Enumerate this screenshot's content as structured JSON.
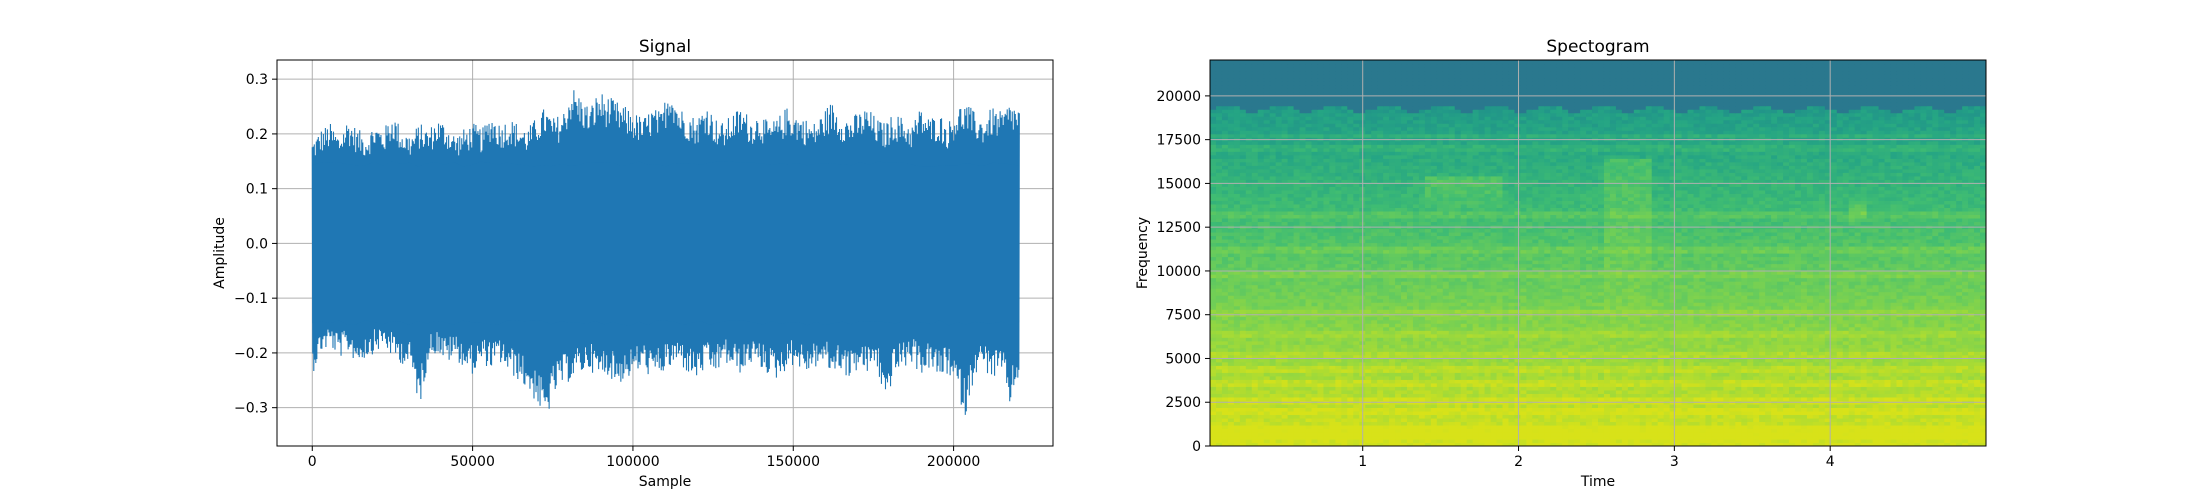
{
  "chart_data": [
    {
      "type": "line",
      "title": "Signal",
      "xlabel": "Sample",
      "ylabel": "Amplitude",
      "xlim": [
        -11000,
        231000
      ],
      "ylim": [
        -0.37,
        0.335
      ],
      "x_ticks": [
        0,
        50000,
        100000,
        150000,
        200000
      ],
      "x_tick_labels": [
        "0",
        "50000",
        "100000",
        "150000",
        "200000"
      ],
      "y_ticks": [
        -0.3,
        -0.2,
        -0.1,
        0.0,
        0.1,
        0.2,
        0.3
      ],
      "y_tick_labels": [
        "−0.3",
        "−0.2",
        "−0.1",
        "0.0",
        "0.1",
        "0.2",
        "0.3"
      ],
      "grid": true,
      "series": [
        {
          "color": "#1f77b4",
          "x_range": [
            0,
            220500
          ],
          "upper_envelope": [
            0.19,
            0.21,
            0.22,
            0.2,
            0.23,
            0.21,
            0.2,
            0.22,
            0.21,
            0.24,
            0.21,
            0.2,
            0.22,
            0.21,
            0.23,
            0.22,
            0.2,
            0.21,
            0.22,
            0.21,
            0.24,
            0.22,
            0.23,
            0.22,
            0.21,
            0.23,
            0.25,
            0.23,
            0.24,
            0.29,
            0.27,
            0.25,
            0.28,
            0.27,
            0.26,
            0.25,
            0.24,
            0.23,
            0.25,
            0.24,
            0.3,
            0.25,
            0.24,
            0.23,
            0.26,
            0.23,
            0.22,
            0.24,
            0.25,
            0.23,
            0.24,
            0.22,
            0.23,
            0.25,
            0.24,
            0.23,
            0.22,
            0.24,
            0.26,
            0.24,
            0.23,
            0.24,
            0.25,
            0.23,
            0.22,
            0.24,
            0.23,
            0.22,
            0.25,
            0.23,
            0.24,
            0.22,
            0.25,
            0.26,
            0.24,
            0.23,
            0.25,
            0.24,
            0.26,
            0.25
          ],
          "lower_envelope": [
            -0.24,
            -0.2,
            -0.19,
            -0.21,
            -0.2,
            -0.22,
            -0.21,
            -0.2,
            -0.19,
            -0.21,
            -0.22,
            -0.23,
            -0.3,
            -0.21,
            -0.2,
            -0.22,
            -0.21,
            -0.23,
            -0.24,
            -0.22,
            -0.23,
            -0.22,
            -0.24,
            -0.25,
            -0.27,
            -0.29,
            -0.33,
            -0.28,
            -0.26,
            -0.25,
            -0.24,
            -0.23,
            -0.25,
            -0.24,
            -0.26,
            -0.25,
            -0.24,
            -0.23,
            -0.25,
            -0.24,
            -0.23,
            -0.22,
            -0.24,
            -0.25,
            -0.23,
            -0.24,
            -0.22,
            -0.23,
            -0.24,
            -0.22,
            -0.23,
            -0.24,
            -0.25,
            -0.23,
            -0.22,
            -0.24,
            -0.23,
            -0.22,
            -0.24,
            -0.23,
            -0.25,
            -0.23,
            -0.24,
            -0.22,
            -0.3,
            -0.24,
            -0.23,
            -0.22,
            -0.24,
            -0.23,
            -0.25,
            -0.24,
            -0.27,
            -0.32,
            -0.24,
            -0.23,
            -0.25,
            -0.24,
            -0.3,
            -0.24
          ]
        }
      ]
    },
    {
      "type": "heatmap",
      "title": "Spectogram",
      "xlabel": "Time",
      "ylabel": "Frequency",
      "xlim": [
        0.02,
        5.0
      ],
      "ylim": [
        0,
        22050
      ],
      "x_ticks": [
        1,
        2,
        3,
        4
      ],
      "x_tick_labels": [
        "1",
        "2",
        "3",
        "4"
      ],
      "y_ticks": [
        0,
        2500,
        5000,
        7500,
        10000,
        12500,
        15000,
        17500,
        20000
      ],
      "y_tick_labels": [
        "0",
        "2500",
        "5000",
        "7500",
        "10000",
        "12500",
        "15000",
        "17500",
        "20000"
      ],
      "grid": true,
      "colormap": "viridis",
      "color_stops": [
        "#d8e219",
        "#a0da39",
        "#6ece58",
        "#3fbc73",
        "#25a584",
        "#1f8a8c",
        "#26828e",
        "#2a788e"
      ],
      "band_cutoff_hz": 19300,
      "bright_lines_hz": [
        600,
        1000,
        2000,
        2600,
        3600,
        4400,
        5200,
        6400,
        7600,
        9800,
        11200,
        13200,
        17000,
        17800
      ],
      "features": [
        {
          "time": [
            1.4,
            1.9
          ],
          "freq": [
            13500,
            15500
          ],
          "peak_hz": 15200
        },
        {
          "time": [
            2.55,
            2.85
          ],
          "freq": [
            7000,
            16500
          ],
          "peak_hz": 16400
        },
        {
          "time": [
            4.1,
            4.25
          ],
          "freq": [
            12800,
            14000
          ],
          "peak_hz": 13500
        }
      ]
    }
  ]
}
